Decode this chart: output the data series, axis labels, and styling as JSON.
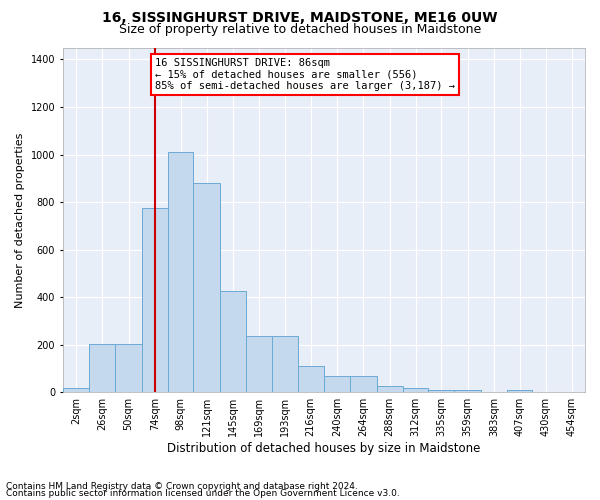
{
  "title": "16, SISSINGHURST DRIVE, MAIDSTONE, ME16 0UW",
  "subtitle": "Size of property relative to detached houses in Maidstone",
  "xlabel": "Distribution of detached houses by size in Maidstone",
  "ylabel": "Number of detached properties",
  "footnote1": "Contains HM Land Registry data © Crown copyright and database right 2024.",
  "footnote2": "Contains public sector information licensed under the Open Government Licence v3.0.",
  "annotation_line1": "16 SISSINGHURST DRIVE: 86sqm",
  "annotation_line2": "← 15% of detached houses are smaller (556)",
  "annotation_line3": "85% of semi-detached houses are larger (3,187) →",
  "bar_color": "#c5d9ee",
  "bar_edge_color": "#6aaad4",
  "vline_color": "#cc0000",
  "vline_x": 86,
  "bin_edges": [
    2,
    26,
    50,
    74,
    98,
    121,
    145,
    169,
    193,
    216,
    240,
    264,
    288,
    312,
    335,
    359,
    383,
    407,
    430,
    454,
    478
  ],
  "bar_heights": [
    20,
    205,
    205,
    775,
    1010,
    880,
    425,
    235,
    235,
    110,
    70,
    70,
    25,
    20,
    10,
    10,
    0,
    10,
    0,
    0
  ],
  "ylim": [
    0,
    1450
  ],
  "yticks": [
    0,
    200,
    400,
    600,
    800,
    1000,
    1200,
    1400
  ],
  "background_color": "#e8eef8",
  "grid_color": "#d0d8e8",
  "title_fontsize": 10,
  "subtitle_fontsize": 9,
  "xlabel_fontsize": 8.5,
  "ylabel_fontsize": 8,
  "tick_fontsize": 7,
  "annotation_fontsize": 7.5,
  "footnote_fontsize": 6.5
}
